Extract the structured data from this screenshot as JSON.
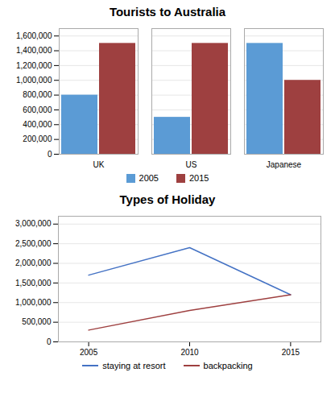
{
  "chart_data": [
    {
      "type": "bar",
      "title": "Tourists to Australia",
      "categories": [
        "UK",
        "US",
        "Japanese"
      ],
      "series": [
        {
          "name": "2005",
          "color": "#5B9BD5",
          "values": [
            800000,
            500000,
            1500000
          ]
        },
        {
          "name": "2015",
          "color": "#9E4040",
          "values": [
            1500000,
            1500000,
            1000000
          ]
        }
      ],
      "ylim": [
        0,
        1700000
      ],
      "yticks": [
        0,
        {
          "value": 200000,
          "label": "200,000"
        },
        {
          "value": 400000,
          "label": "400,000"
        },
        {
          "value": 600000,
          "label": "600,000"
        },
        {
          "value": 800000,
          "label": "800,000"
        },
        {
          "value": 1000000,
          "label": "1,000,000"
        },
        {
          "value": 1200000,
          "label": "1,200,000"
        },
        {
          "value": 1400000,
          "label": "1,400,000"
        },
        {
          "value": 1600000,
          "label": "1,600,000"
        }
      ],
      "grid": true,
      "legend": "bottom"
    },
    {
      "type": "line",
      "title": "Types of Holiday",
      "x": [
        2005,
        2010,
        2015
      ],
      "series": [
        {
          "name": "staying at resort",
          "color": "#4472C4",
          "values": [
            1700000,
            2400000,
            1200000
          ]
        },
        {
          "name": "backpacking",
          "color": "#9E4040",
          "values": [
            300000,
            800000,
            1200000
          ]
        }
      ],
      "xlim": [
        2003.5,
        2016.5
      ],
      "xticks": [
        2005,
        2010,
        2015
      ],
      "ylim": [
        0,
        3200000
      ],
      "yticks": [
        0,
        {
          "value": 500000,
          "label": "500,000"
        },
        {
          "value": 1000000,
          "label": "1,000,000"
        },
        {
          "value": 1500000,
          "label": "1,500,000"
        },
        {
          "value": 2000000,
          "label": "2,000,000"
        },
        {
          "value": 2500000,
          "label": "2,500,000"
        },
        {
          "value": 3000000,
          "label": "3,000,000"
        }
      ],
      "grid": true,
      "legend": "bottom"
    }
  ]
}
